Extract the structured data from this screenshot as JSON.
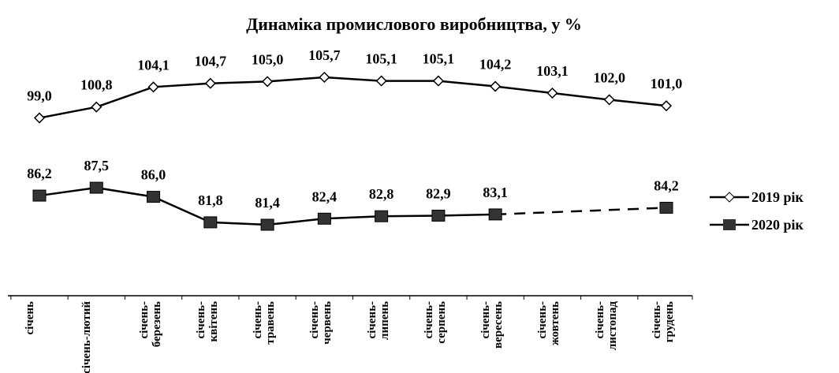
{
  "chart_data": {
    "type": "line",
    "title": "Динаміка промислового виробництва, у %",
    "categories": [
      "січень",
      "січень-лютий",
      "січень-березень",
      "січень-квітень",
      "січень-травень",
      "січень-червень",
      "січень-липень",
      "січень-серпень",
      "січень-вересень",
      "січень-жовтень",
      "січень-листопад",
      "січень-грудень"
    ],
    "series": [
      {
        "name": "2019 рік",
        "color": "#000000",
        "values": [
          99.0,
          100.8,
          104.1,
          104.7,
          105.0,
          105.7,
          105.1,
          105.1,
          104.2,
          103.1,
          102.0,
          101.0
        ],
        "value_labels": [
          "99,0",
          "100,8",
          "104,1",
          "104,7",
          "105,0",
          "105,7",
          "105,1",
          "105,1",
          "104,2",
          "103,1",
          "102,0",
          "101,0"
        ]
      },
      {
        "name": "2020 рік",
        "color": "#000000",
        "values": [
          86.2,
          87.5,
          86.0,
          81.8,
          81.4,
          82.4,
          82.8,
          82.9,
          83.1,
          null,
          null,
          84.2
        ],
        "value_labels": [
          "86,2",
          "87,5",
          "86,0",
          "81,8",
          "81,4",
          "82,4",
          "82,8",
          "82,9",
          "83,1",
          null,
          null,
          "84,2"
        ]
      }
    ],
    "legend": "right"
  }
}
